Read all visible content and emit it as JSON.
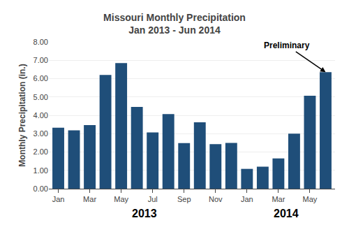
{
  "chart_data": {
    "type": "bar",
    "title": "Missouri Monthly Precipitation",
    "subtitle": "Jan 2013 - Jun 2014",
    "ylabel": "Monthly Precipitation (in.)",
    "categories": [
      "Jan",
      null,
      "Mar",
      null,
      "May",
      null,
      "Jul",
      null,
      "Sep",
      null,
      "Nov",
      null,
      "Jan",
      null,
      "Mar",
      null,
      "May",
      null
    ],
    "values": [
      3.32,
      3.18,
      3.47,
      6.2,
      6.85,
      4.46,
      3.07,
      4.07,
      2.49,
      3.62,
      2.43,
      2.5,
      1.08,
      1.2,
      1.65,
      3.0,
      5.07,
      6.35
    ],
    "color": "#1F4E79",
    "ylim": [
      0,
      8.0
    ],
    "yticks": [
      {
        "value": 0.0,
        "label": "0.00"
      },
      {
        "value": 1.0,
        "label": "1.00"
      },
      {
        "value": 2.0,
        "label": "2.00"
      },
      {
        "value": 3.0,
        "label": "3.00"
      },
      {
        "value": 4.0,
        "label": "4.00"
      },
      {
        "value": 5.0,
        "label": "5.00"
      },
      {
        "value": 6.0,
        "label": "6.00"
      },
      {
        "value": 7.0,
        "label": "7.00"
      },
      {
        "value": 8.0,
        "label": "8.00"
      }
    ],
    "grid": true,
    "annotations": [
      {
        "text": "Preliminary",
        "index": 17
      },
      {
        "text": "2013"
      },
      {
        "text": "2014"
      }
    ]
  }
}
